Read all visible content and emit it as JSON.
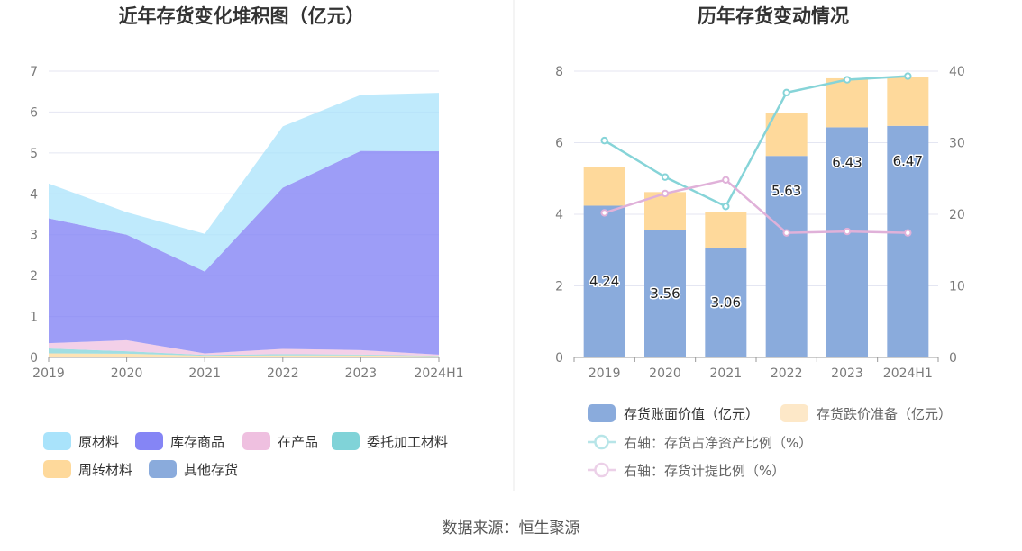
{
  "source_label": "数据来源：恒生聚源",
  "colors": {
    "raw_materials": "#a9e3fb",
    "finished_goods": "#8585f5",
    "wip": "#efc0e0",
    "consigned": "#80d3d8",
    "turnover": "#fed99b",
    "other": "#8aabdc",
    "book_value": "#8aabdc",
    "impairment": "#fed99b",
    "ratio_net_assets": "#86d4d8",
    "provision_ratio": "#e0b1d9"
  },
  "chart_data": [
    {
      "type": "area",
      "stacked": true,
      "title": "近年存货变化堆积图（亿元）",
      "categories": [
        "2019",
        "2020",
        "2021",
        "2022",
        "2023",
        "2024H1"
      ],
      "ylim": [
        0,
        7
      ],
      "yticks": [
        "0",
        "1",
        "2",
        "3",
        "4",
        "5",
        "6",
        "7"
      ],
      "legend": "bottom",
      "series": [
        {
          "name": "其他存货",
          "key": "other",
          "values": [
            0.02,
            0.02,
            0.01,
            0.01,
            0.01,
            0.01
          ]
        },
        {
          "name": "周转材料",
          "key": "turnover",
          "values": [
            0.08,
            0.07,
            0.03,
            0.04,
            0.04,
            0.02
          ]
        },
        {
          "name": "委托加工材料",
          "key": "consigned",
          "values": [
            0.12,
            0.06,
            0.02,
            0.03,
            0.02,
            0.01
          ]
        },
        {
          "name": "在产品",
          "key": "wip",
          "values": [
            0.13,
            0.27,
            0.04,
            0.13,
            0.11,
            0.03
          ]
        },
        {
          "name": "库存商品",
          "key": "finished_goods",
          "values": [
            3.05,
            2.58,
            2.0,
            3.94,
            4.87,
            4.97
          ]
        },
        {
          "name": "原材料",
          "key": "raw_materials",
          "values": [
            0.85,
            0.55,
            0.92,
            1.5,
            1.37,
            1.43
          ]
        }
      ],
      "legend_order": [
        "原材料",
        "库存商品",
        "在产品",
        "委托加工材料",
        "周转材料",
        "其他存货"
      ]
    },
    {
      "type": "bar",
      "stacked": true,
      "title": "历年存货变动情况",
      "categories": [
        "2019",
        "2020",
        "2021",
        "2022",
        "2023",
        "2024H1"
      ],
      "ylim": [
        0,
        8
      ],
      "yticks": [
        "0",
        "2",
        "4",
        "6",
        "8"
      ],
      "y2lim": [
        0,
        40
      ],
      "y2ticks": [
        "0",
        "10",
        "20",
        "30",
        "40"
      ],
      "legend": "bottom",
      "series": [
        {
          "name": "存货账面价值（亿元）",
          "key": "book_value",
          "kind": "bar",
          "values": [
            4.24,
            3.56,
            3.06,
            5.63,
            6.43,
            6.47
          ],
          "labels": [
            "4.24",
            "3.56",
            "3.06",
            "5.63",
            "6.43",
            "6.47"
          ]
        },
        {
          "name": "存货跌价准备（亿元）",
          "key": "impairment",
          "kind": "bar",
          "values": [
            1.08,
            1.06,
            1.0,
            1.19,
            1.37,
            1.36
          ]
        },
        {
          "name": "右轴：存货占净资产比例（%）",
          "key": "ratio_net_assets",
          "kind": "line",
          "axis": "right",
          "values": [
            30.3,
            25.2,
            21.1,
            37.0,
            38.8,
            39.3
          ]
        },
        {
          "name": "右轴：存货计提比例（%）",
          "key": "provision_ratio",
          "kind": "line",
          "axis": "right",
          "values": [
            20.2,
            22.9,
            24.8,
            17.4,
            17.6,
            17.4
          ]
        }
      ]
    }
  ]
}
